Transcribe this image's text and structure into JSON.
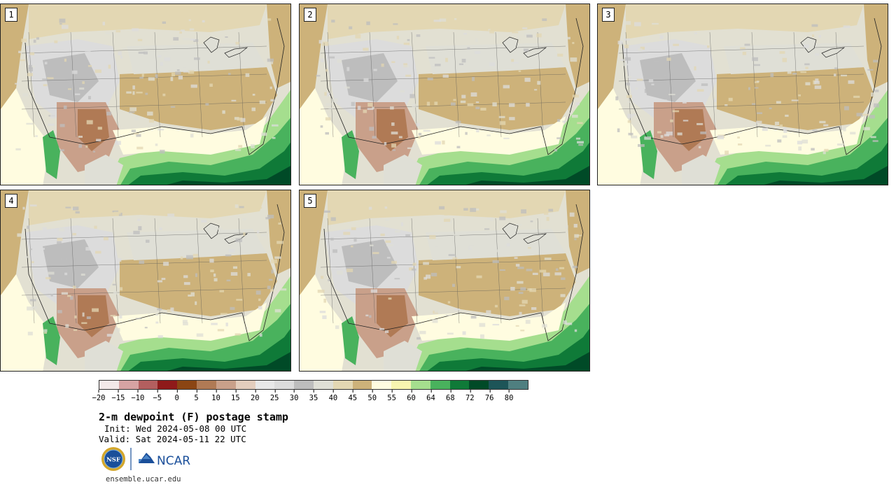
{
  "panels": [
    {
      "label": "1"
    },
    {
      "label": "2"
    },
    {
      "label": "3"
    },
    {
      "label": "4"
    },
    {
      "label": "5"
    }
  ],
  "colorbar": {
    "colors": [
      "#f3e9e9",
      "#d6a3a3",
      "#b35f5f",
      "#8f1a1a",
      "#8b4513",
      "#b07a55",
      "#c9a08a",
      "#e3cdbd",
      "#e8e8e8",
      "#dcdcdc",
      "#bdbdbd",
      "#dfdfd6",
      "#e3d7b3",
      "#cdb27a",
      "#fffce0",
      "#f8f5b0",
      "#a5de8e",
      "#49b25d",
      "#0f7a38",
      "#004a27",
      "#1d5558",
      "#4f7f80"
    ],
    "tick_labels": [
      "−20",
      "−15",
      "−10",
      "−5",
      "0",
      "5",
      "10",
      "15",
      "20",
      "25",
      "30",
      "35",
      "40",
      "45",
      "50",
      "55",
      "60",
      "64",
      "68",
      "72",
      "76",
      "80"
    ]
  },
  "title": "2-m dewpoint (F) postage stamp",
  "init": "Init: Wed 2024-05-08 00 UTC",
  "valid": "Valid: Sat 2024-05-11 22 UTC",
  "logos": {
    "nsf": "NSF",
    "ncar": "NCAR"
  },
  "site": "ensemble.ucar.edu"
}
